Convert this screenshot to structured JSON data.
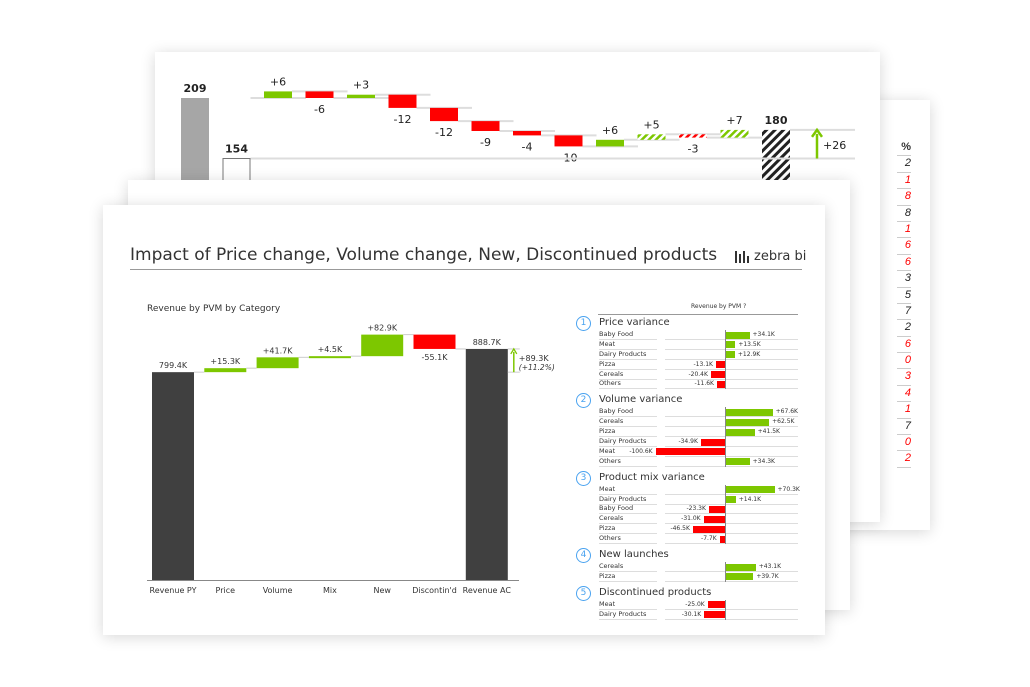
{
  "colors": {
    "positive": "#7dc700",
    "negative": "#ff0000",
    "total": "#404040",
    "previous": "#a6a6a6",
    "accent": "#4aa3f0"
  },
  "back_card": {
    "percent_header": "%",
    "percent_digits": [
      {
        "t": "2",
        "neg": false
      },
      {
        "t": "1",
        "neg": true
      },
      {
        "t": "8",
        "neg": true
      },
      {
        "t": "8",
        "neg": false
      },
      {
        "t": "1",
        "neg": true
      },
      {
        "t": "6",
        "neg": true
      },
      {
        "t": "6",
        "neg": true
      },
      {
        "t": "3",
        "neg": false
      },
      {
        "t": "5",
        "neg": false
      },
      {
        "t": "7",
        "neg": false
      },
      {
        "t": "2",
        "neg": false
      },
      {
        "t": "6",
        "neg": true
      },
      {
        "t": "0",
        "neg": true
      },
      {
        "t": "3",
        "neg": true
      },
      {
        "t": "4",
        "neg": true
      },
      {
        "t": "1",
        "neg": true
      },
      {
        "t": "7",
        "neg": false
      },
      {
        "t": "0",
        "neg": true
      },
      {
        "t": "2",
        "neg": true
      }
    ]
  },
  "main": {
    "title": "Impact of Price change, Volume change, New, Discontinued products",
    "logo_text": "zebra bi",
    "right_panel": {
      "header": "Revenue by PVM ?"
    }
  },
  "chart_data": [
    {
      "type": "waterfall",
      "start": {
        "label": "209",
        "value": 209
      },
      "steps": [
        {
          "label": "+6",
          "value": 6,
          "hatched": false
        },
        {
          "label": "-6",
          "value": -6,
          "hatched": false
        },
        {
          "label": "+3",
          "value": 3,
          "hatched": false
        },
        {
          "label": "-12",
          "value": -12,
          "hatched": false
        },
        {
          "label": "-12",
          "value": -12,
          "hatched": false
        },
        {
          "label": "-9",
          "value": -9,
          "hatched": false
        },
        {
          "label": "-4",
          "value": -4,
          "hatched": false
        },
        {
          "label": "-10",
          "value": -10,
          "hatched": false
        },
        {
          "label": "+6",
          "value": 6,
          "hatched": false
        },
        {
          "label": "+5",
          "value": 5,
          "hatched": true
        },
        {
          "label": "-3",
          "value": -3,
          "hatched": true
        },
        {
          "label": "+7",
          "value": 7,
          "hatched": true
        }
      ],
      "end": {
        "label": "180",
        "value": 180
      },
      "reference": {
        "label": "154",
        "value": 154
      },
      "variance": {
        "label": "+26",
        "value": 26
      }
    },
    {
      "type": "waterfall",
      "title": "Revenue by PVM by Category",
      "categories": [
        "Revenue PY",
        "Price",
        "Volume",
        "Mix",
        "New",
        "Discontin'd",
        "Revenue AC"
      ],
      "values": [
        799.4,
        15.3,
        41.7,
        4.5,
        82.9,
        -55.1,
        888.7
      ],
      "labels": [
        "799.4K",
        "+15.3K",
        "+41.7K",
        "+4.5K",
        "+82.9K",
        "-55.1K",
        "888.7K"
      ],
      "kinds": [
        "total",
        "delta",
        "delta",
        "delta",
        "delta",
        "delta",
        "total"
      ],
      "variance": {
        "label": "+89.3K",
        "percent": "(+11.2%)",
        "value": 89.3
      }
    },
    {
      "type": "bar",
      "orientation": "horizontal",
      "sections": [
        {
          "num": "1",
          "title": "Price variance",
          "items": [
            {
              "name": "Baby Food",
              "value": 34.1,
              "label": "+34.1K"
            },
            {
              "name": "Meat",
              "value": 13.5,
              "label": "+13.5K"
            },
            {
              "name": "Dairy Products",
              "value": 12.9,
              "label": "+12.9K"
            },
            {
              "name": "Pizza",
              "value": -13.1,
              "label": "-13.1K"
            },
            {
              "name": "Cereals",
              "value": -20.4,
              "label": "-20.4K"
            },
            {
              "name": "Others",
              "value": -11.6,
              "label": "-11.6K"
            }
          ]
        },
        {
          "num": "2",
          "title": "Volume variance",
          "items": [
            {
              "name": "Baby Food",
              "value": 67.6,
              "label": "+67.6K"
            },
            {
              "name": "Cereals",
              "value": 62.5,
              "label": "+62.5K"
            },
            {
              "name": "Pizza",
              "value": 41.5,
              "label": "+41.5K"
            },
            {
              "name": "Dairy Products",
              "value": -34.9,
              "label": "-34.9K"
            },
            {
              "name": "Meat",
              "value": -100.6,
              "label": "-100.6K"
            },
            {
              "name": "Others",
              "value": 34.3,
              "label": "+34.3K"
            }
          ]
        },
        {
          "num": "3",
          "title": "Product mix variance",
          "items": [
            {
              "name": "Meat",
              "value": 70.3,
              "label": "+70.3K"
            },
            {
              "name": "Dairy Products",
              "value": 14.1,
              "label": "+14.1K"
            },
            {
              "name": "Baby Food",
              "value": -23.3,
              "label": "-23.3K"
            },
            {
              "name": "Cereals",
              "value": -31.0,
              "label": "-31.0K"
            },
            {
              "name": "Pizza",
              "value": -46.5,
              "label": "-46.5K"
            },
            {
              "name": "Others",
              "value": -7.7,
              "label": "-7.7K"
            }
          ]
        },
        {
          "num": "4",
          "title": "New launches",
          "items": [
            {
              "name": "Cereals",
              "value": 43.1,
              "label": "+43.1K"
            },
            {
              "name": "Pizza",
              "value": 39.7,
              "label": "+39.7K"
            }
          ]
        },
        {
          "num": "5",
          "title": "Discontinued products",
          "items": [
            {
              "name": "Meat",
              "value": -25.0,
              "label": "-25.0K"
            },
            {
              "name": "Dairy Products",
              "value": -30.1,
              "label": "-30.1K"
            }
          ]
        }
      ]
    }
  ]
}
